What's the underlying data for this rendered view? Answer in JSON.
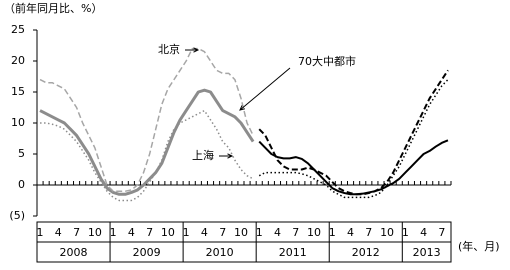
{
  "chart_data": {
    "type": "line",
    "y_label": "（前年同月比、%）",
    "x_label": "(年、月)",
    "years": [
      "2008",
      "2009",
      "2010",
      "2011",
      "2012",
      "2013"
    ],
    "categories": [
      "1",
      null,
      null,
      "4",
      null,
      null,
      "7",
      null,
      null,
      "10",
      null,
      null,
      "1",
      null,
      null,
      "4",
      null,
      null,
      "7",
      null,
      null,
      "10",
      null,
      null,
      "1",
      null,
      null,
      "4",
      null,
      null,
      "7",
      null,
      null,
      "10",
      null,
      null,
      "1",
      null,
      null,
      "4",
      null,
      null,
      "7",
      null,
      null,
      "10",
      null,
      null,
      "1",
      null,
      null,
      "4",
      null,
      null,
      "7",
      null,
      null,
      "10",
      null,
      null,
      "1",
      null,
      null,
      "4",
      null,
      null,
      "7",
      null
    ],
    "ylim": [
      -5,
      25
    ],
    "yticks": [
      25,
      20,
      15,
      10,
      5,
      0,
      {
        "value": -5,
        "label": "(5)"
      }
    ],
    "series": [
      {
        "name": "70大中都市",
        "color": "#8c8c8c",
        "style": "solid",
        "width": 3,
        "values": [
          12,
          11.5,
          11,
          10.5,
          10,
          9,
          8,
          6.5,
          5,
          3,
          1,
          -0.5,
          -1.2,
          -1.5,
          -1.5,
          -1.2,
          -0.8,
          0,
          1,
          2,
          3.5,
          6,
          8.5,
          10.5,
          12,
          13.5,
          15,
          15.3,
          15,
          13.5,
          12,
          11.5,
          11,
          10,
          8.5,
          7,
          null,
          null,
          null,
          null,
          null,
          null,
          null,
          null,
          null,
          null,
          null,
          null,
          null,
          null,
          null,
          null,
          null,
          null,
          null,
          null,
          null,
          null,
          null,
          null,
          null,
          null,
          null,
          null,
          null,
          null,
          null,
          null
        ]
      },
      {
        "name": "北京",
        "color": "#a6a6a6",
        "style": "dashed",
        "width": 1.5,
        "values": [
          17,
          16.5,
          16.5,
          16,
          15.5,
          14,
          12.5,
          10,
          8,
          6,
          3,
          0,
          -1,
          -1,
          -1,
          -0.8,
          0,
          2,
          5,
          9,
          13,
          15.5,
          17,
          18.5,
          20,
          22,
          22,
          21.5,
          20,
          18.5,
          18,
          18,
          17,
          14,
          10,
          8,
          null,
          null,
          null,
          null,
          null,
          null,
          null,
          null,
          null,
          null,
          null,
          null,
          null,
          null,
          null,
          null,
          null,
          null,
          null,
          null,
          null,
          null,
          null,
          null,
          null,
          null,
          null,
          null,
          null,
          null,
          null,
          null
        ]
      },
      {
        "name": "上海",
        "color": "#8c8c8c",
        "style": "dotted",
        "width": 1.5,
        "values": [
          10,
          10,
          9.8,
          9.5,
          9,
          8,
          7,
          5.5,
          4,
          2,
          0.5,
          -1,
          -2,
          -2.5,
          -2.5,
          -2.5,
          -2,
          -1,
          0.5,
          2,
          4,
          7,
          9,
          10,
          10.5,
          11,
          11.5,
          12,
          10.5,
          9,
          7,
          6,
          4,
          2.5,
          1.5,
          1,
          null,
          null,
          null,
          null,
          null,
          null,
          null,
          null,
          null,
          null,
          null,
          null,
          null,
          null,
          null,
          null,
          null,
          null,
          null,
          null,
          null,
          null,
          null,
          null,
          null,
          null,
          null,
          null,
          null,
          null,
          null,
          null
        ]
      },
      {
        "color": "#000000",
        "style": "solid",
        "width": 2,
        "values": [
          null,
          null,
          null,
          null,
          null,
          null,
          null,
          null,
          null,
          null,
          null,
          null,
          null,
          null,
          null,
          null,
          null,
          null,
          null,
          null,
          null,
          null,
          null,
          null,
          null,
          null,
          null,
          null,
          null,
          null,
          null,
          null,
          null,
          null,
          null,
          null,
          7,
          6,
          5,
          4.5,
          4.3,
          4.3,
          4.5,
          4.2,
          3.5,
          2.5,
          1.5,
          0.5,
          -0.5,
          -1,
          -1.3,
          -1.5,
          -1.5,
          -1.4,
          -1.2,
          -1,
          -0.7,
          -0.2,
          0.3,
          1,
          2,
          3,
          4,
          5,
          5.5,
          6.2,
          6.8,
          7.2
        ]
      },
      {
        "color": "#000000",
        "style": "dashed",
        "width": 2,
        "values": [
          null,
          null,
          null,
          null,
          null,
          null,
          null,
          null,
          null,
          null,
          null,
          null,
          null,
          null,
          null,
          null,
          null,
          null,
          null,
          null,
          null,
          null,
          null,
          null,
          null,
          null,
          null,
          null,
          null,
          null,
          null,
          null,
          null,
          null,
          null,
          null,
          9,
          8,
          6,
          4,
          3,
          2.5,
          2.5,
          2.5,
          2.8,
          2.5,
          2,
          1.5,
          0.5,
          -0.5,
          -1,
          -1.3,
          -1.5,
          -1.5,
          -1.3,
          -1,
          -0.5,
          0.5,
          2,
          4,
          6,
          8,
          10,
          12,
          14,
          15.5,
          17,
          18.5
        ]
      },
      {
        "color": "#000000",
        "style": "dotted",
        "width": 1.5,
        "values": [
          null,
          null,
          null,
          null,
          null,
          null,
          null,
          null,
          null,
          null,
          null,
          null,
          null,
          null,
          null,
          null,
          null,
          null,
          null,
          null,
          null,
          null,
          null,
          null,
          null,
          null,
          null,
          null,
          null,
          null,
          null,
          null,
          null,
          null,
          null,
          null,
          1.5,
          2,
          2,
          2,
          2,
          2,
          2,
          1.8,
          1.5,
          1,
          0.5,
          0,
          -1,
          -1.5,
          -2,
          -2,
          -2,
          -2,
          -2,
          -1.7,
          -1.2,
          0,
          1.5,
          3,
          5,
          7,
          9,
          11,
          13,
          14.5,
          16,
          17
        ]
      }
    ]
  }
}
